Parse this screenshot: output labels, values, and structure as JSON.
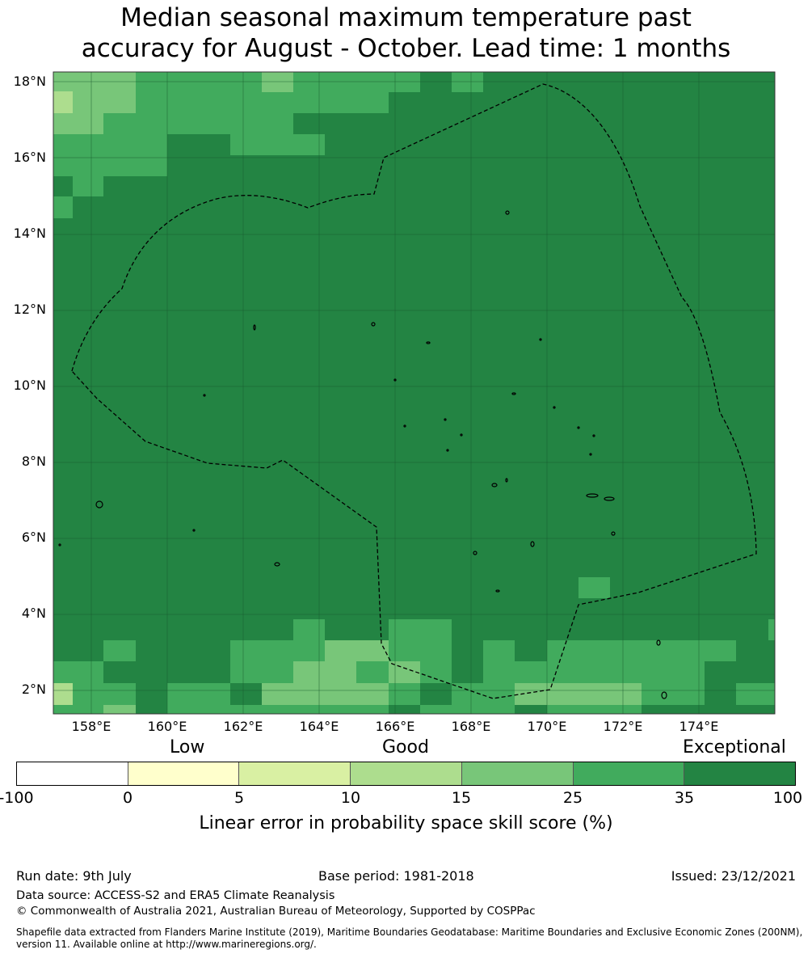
{
  "title": {
    "line1": "Median seasonal maximum temperature past",
    "line2": "accuracy for August - October. Lead time: 1 months"
  },
  "map": {
    "lat_labels": [
      "18°N",
      "16°N",
      "14°N",
      "12°N",
      "10°N",
      "8°N",
      "6°N",
      "4°N",
      "2°N"
    ],
    "lon_labels": [
      "158°E",
      "160°E",
      "162°E",
      "164°E",
      "166°E",
      "168°E",
      "170°E",
      "172°E",
      "174°E"
    ],
    "extent": {
      "lon_min": 157.0,
      "lon_max": 176.0,
      "lat_min": 1.4,
      "lat_max": 18.3
    },
    "gridlines": true,
    "boundary": "dashed EEZ boundary line",
    "colors": {
      "exceptional": "#238443",
      "level_25_35": "#41ab5d",
      "level_15_25": "#78c679",
      "level_10_15": "#addd8e",
      "level_5_10": "#d9f0a3",
      "level_0_5": "#ffffcc",
      "below_0": "#ffffff"
    }
  },
  "colorbar": {
    "category_labels": [
      "Low",
      "Good",
      "Exceptional"
    ],
    "ticks": [
      "-100",
      "0",
      "5",
      "10",
      "15",
      "25",
      "35",
      "100"
    ],
    "colors": [
      "#ffffff",
      "#ffffcc",
      "#d9f0a3",
      "#addd8e",
      "#78c679",
      "#41ab5d",
      "#238443"
    ],
    "label": "Linear error in probability space skill score (%)"
  },
  "footer": {
    "run_date": "Run date: 9th July",
    "base_period": "Base period: 1981-2018",
    "issued": "Issued: 23/12/2021",
    "data_source": "Data source: ACCESS-S2 and ERA5 Climate Reanalysis",
    "copyright": "© Commonwealth of Australia 2021, Australian Bureau of Meteorology, Supported by COSPPac",
    "shapefile": "Shapefile data extracted from Flanders Marine Institute (2019), Maritime Boundaries Geodatabase: Maritime Boundaries and Exclusive Economic Zones (200NM), version 11. Available online at http://www.marineregions.org/."
  }
}
